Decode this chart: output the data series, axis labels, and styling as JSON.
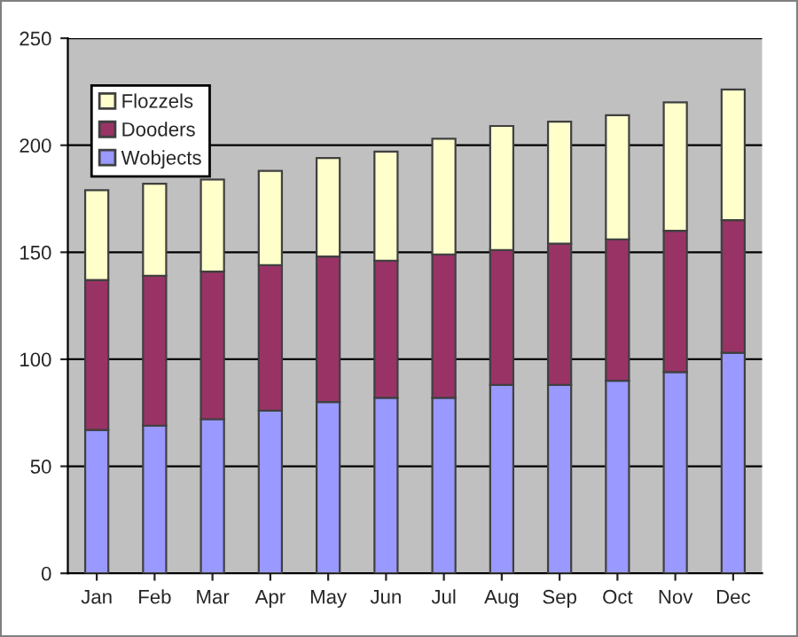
{
  "chart_data": {
    "type": "bar",
    "stacked": true,
    "categories": [
      "Jan",
      "Feb",
      "Mar",
      "Apr",
      "May",
      "Jun",
      "Jul",
      "Aug",
      "Sep",
      "Oct",
      "Nov",
      "Dec"
    ],
    "series": [
      {
        "name": "Wobjects",
        "color": "#9999ff",
        "values": [
          67,
          69,
          72,
          76,
          80,
          82,
          82,
          88,
          88,
          90,
          94,
          103
        ]
      },
      {
        "name": "Dooders",
        "color": "#993366",
        "values": [
          70,
          70,
          69,
          68,
          68,
          64,
          67,
          63,
          66,
          66,
          66,
          62
        ]
      },
      {
        "name": "Flozzels",
        "color": "#ffffcc",
        "values": [
          42,
          43,
          43,
          44,
          46,
          51,
          54,
          58,
          57,
          58,
          60,
          61
        ]
      }
    ],
    "ylim": [
      0,
      250
    ],
    "yticks": [
      0,
      50,
      100,
      150,
      200,
      250
    ],
    "grid": "y",
    "legend": "top left"
  }
}
